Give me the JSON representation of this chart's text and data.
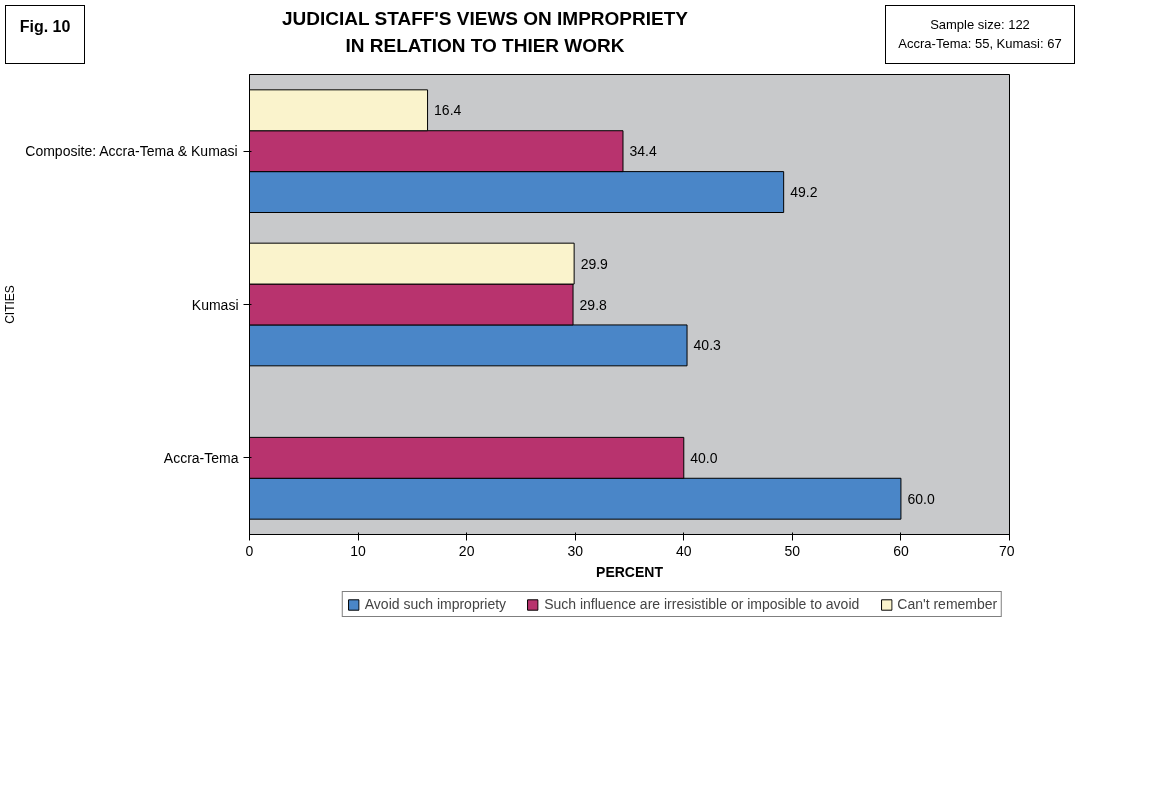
{
  "chart_data": {
    "type": "bar",
    "orientation": "horizontal",
    "title": "JUDICIAL STAFF'S VIEWS ON IMPROPRIETY\nIN RELATION TO THIER WORK",
    "xlabel": "PERCENT",
    "ylabel": "CITIES",
    "annotations": [
      "Fig. 10",
      "Sample size: 122",
      "Accra-Tema: 55, Kumasi: 67"
    ],
    "categories": [
      "Composite: Accra-Tema & Kumasi",
      "Kumasi",
      "Accra-Tema"
    ],
    "series": [
      {
        "name": "Avoid such impropriety",
        "color": "#4a86c8",
        "values": [
          49.2,
          40.3,
          60.0
        ],
        "value_labels": [
          "49.2",
          "40.3",
          "60.0"
        ]
      },
      {
        "name": "Such influence are irresistible or imposible to avoid",
        "color": "#b8336e",
        "values": [
          34.4,
          29.8,
          40.0
        ],
        "value_labels": [
          "34.4",
          "29.8",
          "40.0"
        ]
      },
      {
        "name": "Can't remember",
        "color": "#faf3cc",
        "values": [
          16.4,
          29.9,
          null
        ],
        "value_labels": [
          "16.4",
          "29.9",
          null
        ]
      }
    ],
    "xlim": [
      0,
      70
    ],
    "xticks": [
      0,
      10,
      20,
      30,
      40,
      50,
      60,
      70
    ],
    "grid": false,
    "legend": "bottom"
  }
}
